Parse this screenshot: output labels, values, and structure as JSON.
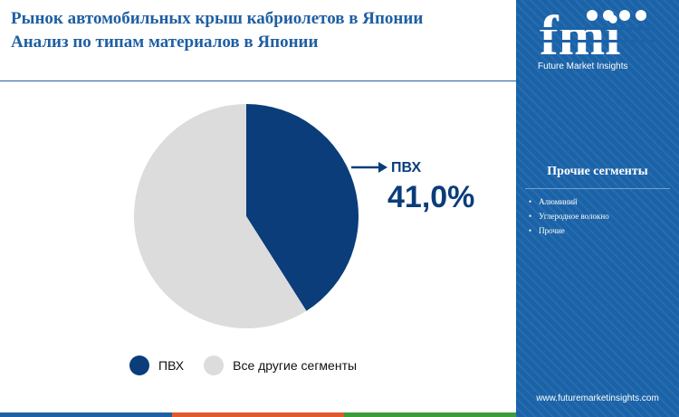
{
  "title": {
    "line1": "Рынок автомобильных крыш кабриолетов в Японии",
    "line2": "Анализ по типам материалов в Японии"
  },
  "chart_data": {
    "type": "pie",
    "slices": [
      {
        "label": "ПВХ",
        "value": 41.0,
        "color": "#0a3d7a"
      },
      {
        "label": "Все другие сегменты",
        "value": 59.0,
        "color": "#dcdcdc"
      }
    ],
    "callout": {
      "label": "ПВХ",
      "value": "41,0%"
    },
    "legend": [
      "ПВХ",
      "Все другие сегменты"
    ],
    "legend_position": "bottom"
  },
  "panel": {
    "logo_text": "fmi",
    "logo_subtitle": "Future Market Insights",
    "segments_title": "Прочие сегменты",
    "segments": [
      "Алюминий",
      "Углеродное волокно",
      "Прочие"
    ],
    "website": "www.futuremarketinsights.com"
  },
  "colors": {
    "title": "#1f5fa3",
    "panel": "#1b63a8",
    "pvc": "#0a3d7a",
    "others": "#dcdcdc",
    "bar": [
      "#1f5fa3",
      "#e05a2b",
      "#3a9d3a"
    ]
  }
}
